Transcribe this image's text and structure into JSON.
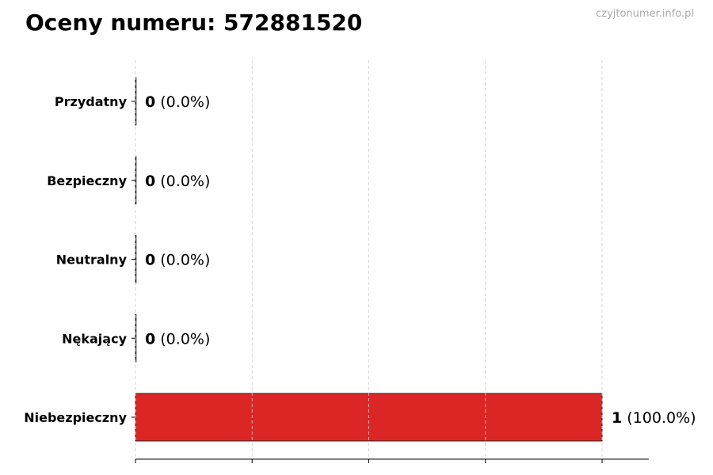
{
  "watermark": "czyjtonumer.info.pl",
  "chart_data": {
    "type": "bar",
    "orientation": "horizontal",
    "title": "Oceny numeru: 572881520",
    "categories": [
      "Przydatny",
      "Bezpieczny",
      "Neutralny",
      "Nękający",
      "Niebezpieczny"
    ],
    "values": [
      0,
      0,
      0,
      0,
      1
    ],
    "value_labels": [
      "(0.0%)",
      "(0.0%)",
      "(0.0%)",
      "(0.0%)",
      "(100.0%)"
    ],
    "colors": [
      "#2e7d32",
      "#4caf50",
      "#9e9e9e",
      "#ff9800",
      "#dc2626"
    ],
    "xlim": [
      0,
      1.1
    ],
    "xticks": [
      0,
      0.25,
      0.5,
      0.75,
      1
    ],
    "xtick_labels_shown": false,
    "grid": "x-dashed",
    "xlabel": "",
    "ylabel": ""
  }
}
